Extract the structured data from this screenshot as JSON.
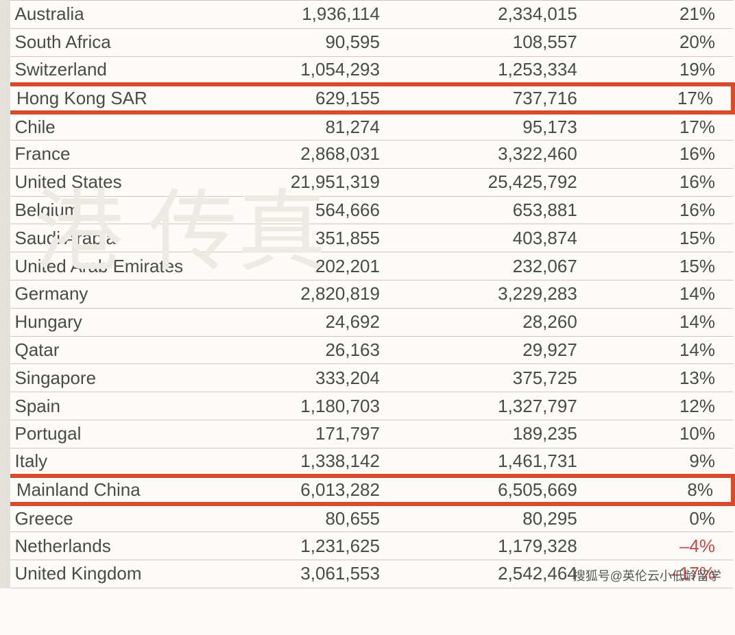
{
  "table": {
    "row_height": 40.8,
    "font_size": 26,
    "text_color": "#4a4a46",
    "neg_color": "#c44a4a",
    "highlight_border_color": "#d84a2a",
    "highlight_border_width": 6,
    "border_color": "#c9c7c0",
    "background_color": "#fcfbf7",
    "left_strip_color": "#e3e1db",
    "col_widths": [
      "31%",
      "22%",
      "27%",
      "20%"
    ],
    "rows": [
      {
        "country": "Australia",
        "v1": "1,936,114",
        "v2": "2,334,015",
        "pct": "21%",
        "neg": false,
        "hl": false
      },
      {
        "country": "South Africa",
        "v1": "90,595",
        "v2": "108,557",
        "pct": "20%",
        "neg": false,
        "hl": false
      },
      {
        "country": "Switzerland",
        "v1": "1,054,293",
        "v2": "1,253,334",
        "pct": "19%",
        "neg": false,
        "hl": false
      },
      {
        "country": "Hong Kong SAR",
        "v1": "629,155",
        "v2": "737,716",
        "pct": "17%",
        "neg": false,
        "hl": true
      },
      {
        "country": "Chile",
        "v1": "81,274",
        "v2": "95,173",
        "pct": "17%",
        "neg": false,
        "hl": false
      },
      {
        "country": "France",
        "v1": "2,868,031",
        "v2": "3,322,460",
        "pct": "16%",
        "neg": false,
        "hl": false
      },
      {
        "country": "United States",
        "v1": "21,951,319",
        "v2": "25,425,792",
        "pct": "16%",
        "neg": false,
        "hl": false
      },
      {
        "country": "Belgium",
        "v1": "564,666",
        "v2": "653,881",
        "pct": "16%",
        "neg": false,
        "hl": false
      },
      {
        "country": "Saudi Arabia",
        "v1": "351,855",
        "v2": "403,874",
        "pct": "15%",
        "neg": false,
        "hl": false
      },
      {
        "country": "United Arab Emirates",
        "v1": "202,201",
        "v2": "232,067",
        "pct": "15%",
        "neg": false,
        "hl": false
      },
      {
        "country": "Germany",
        "v1": "2,820,819",
        "v2": "3,229,283",
        "pct": "14%",
        "neg": false,
        "hl": false
      },
      {
        "country": "Hungary",
        "v1": "24,692",
        "v2": "28,260",
        "pct": "14%",
        "neg": false,
        "hl": false
      },
      {
        "country": "Qatar",
        "v1": "26,163",
        "v2": "29,927",
        "pct": "14%",
        "neg": false,
        "hl": false
      },
      {
        "country": "Singapore",
        "v1": "333,204",
        "v2": "375,725",
        "pct": "13%",
        "neg": false,
        "hl": false
      },
      {
        "country": "Spain",
        "v1": "1,180,703",
        "v2": "1,327,797",
        "pct": "12%",
        "neg": false,
        "hl": false
      },
      {
        "country": "Portugal",
        "v1": "171,797",
        "v2": "189,235",
        "pct": "10%",
        "neg": false,
        "hl": false
      },
      {
        "country": "Italy",
        "v1": "1,338,142",
        "v2": "1,461,731",
        "pct": "9%",
        "neg": false,
        "hl": false
      },
      {
        "country": "Mainland China",
        "v1": "6,013,282",
        "v2": "6,505,669",
        "pct": "8%",
        "neg": false,
        "hl": true
      },
      {
        "country": "Greece",
        "v1": "80,655",
        "v2": "80,295",
        "pct": "0%",
        "neg": false,
        "hl": false
      },
      {
        "country": "Netherlands",
        "v1": "1,231,625",
        "v2": "1,179,328",
        "pct": "–4%",
        "neg": true,
        "hl": false
      },
      {
        "country": "United Kingdom",
        "v1": "3,061,553",
        "v2": "2,542,464",
        "pct": "–17%",
        "neg": true,
        "hl": false
      }
    ]
  },
  "watermark": "搜狐号@英伦云小低龄留学",
  "bg_watermark": "港\n传真"
}
